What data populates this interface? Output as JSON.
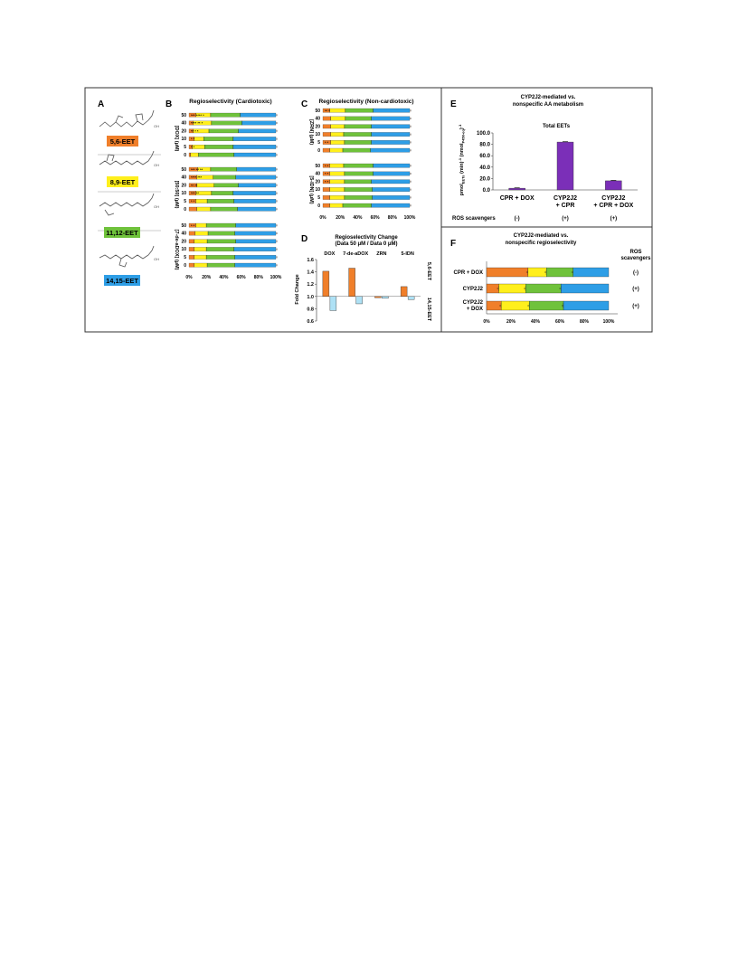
{
  "colors": {
    "eet56": "#f07f2a",
    "eet89": "#ffef1c",
    "eet1112": "#6fc23b",
    "eet1415": "#2e9ee6",
    "purple": "#7b2fb8",
    "neg": "#aee1f5",
    "frame": "#333333"
  },
  "panel_letters": {
    "A": "A",
    "B": "B",
    "C": "C",
    "D": "D",
    "E": "E",
    "F": "F"
  },
  "legend": {
    "items": [
      {
        "label": "5,6-EET",
        "color": "#f07f2a"
      },
      {
        "label": "8,9-EET",
        "color": "#ffef1c"
      },
      {
        "label": "11,12-EET",
        "color": "#6fc23b"
      },
      {
        "label": "14,15-EET",
        "color": "#2e9ee6"
      }
    ]
  },
  "panelB": {
    "title": "Regioselectivity (Cardiotoxic)",
    "x_ticks": [
      "0%",
      "20%",
      "40%",
      "60%",
      "80%",
      "100%"
    ],
    "groups": [
      {
        "label": "[DOX] (μM)",
        "rows": [
          {
            "conc": "50",
            "v": [
              8,
              17,
              34,
              41
            ],
            "stars": "*** **** *"
          },
          {
            "conc": "40",
            "v": [
              5,
              21,
              35,
              39
            ],
            "stars": "**** **  *"
          },
          {
            "conc": "20",
            "v": [
              5,
              18,
              34,
              43
            ],
            "stars": "** *  *"
          },
          {
            "conc": "10",
            "v": [
              6,
              11,
              34,
              49
            ],
            "stars": "* *"
          },
          {
            "conc": "5",
            "v": [
              4,
              14,
              33,
              49
            ],
            "stars": "* *"
          },
          {
            "conc": "0",
            "v": [
              2,
              9,
              41,
              48
            ],
            "stars": ""
          }
        ]
      },
      {
        "label": "[50:50] (μM)",
        "rows": [
          {
            "conc": "50",
            "v": [
              10,
              15,
              30,
              45
            ],
            "stars": "*** **  **"
          },
          {
            "conc": "40",
            "v": [
              9,
              19,
              26,
              46
            ],
            "stars": "**** ***"
          },
          {
            "conc": "20",
            "v": [
              9,
              20,
              28,
              43
            ],
            "stars": "** **"
          },
          {
            "conc": "10",
            "v": [
              8,
              18,
              25,
              49
            ],
            "stars": "*** **"
          },
          {
            "conc": "5",
            "v": [
              8,
              13,
              31,
              48
            ],
            "stars": "* *"
          },
          {
            "conc": "0",
            "v": [
              9,
              16,
              31,
              44
            ],
            "stars": ""
          }
        ]
      },
      {
        "label": "[7-de-aDOX] (μM)",
        "rows": [
          {
            "conc": "50",
            "v": [
              8,
              12,
              34,
              46
            ],
            "stars": "* *"
          },
          {
            "conc": "40",
            "v": [
              7,
              15,
              31,
              47
            ],
            "stars": ""
          },
          {
            "conc": "20",
            "v": [
              6,
              15,
              33,
              46
            ],
            "stars": ""
          },
          {
            "conc": "10",
            "v": [
              6,
              14,
              32,
              48
            ],
            "stars": ""
          },
          {
            "conc": "5",
            "v": [
              6,
              14,
              33,
              47
            ],
            "stars": ""
          },
          {
            "conc": "0",
            "v": [
              6,
              15,
              32,
              47
            ],
            "stars": ""
          }
        ]
      }
    ]
  },
  "panelC": {
    "title": "Regioselectivity (Non-cardiotoxic)",
    "x_ticks": [
      "0%",
      "20%",
      "40%",
      "60%",
      "80%",
      "100%"
    ],
    "groups": [
      {
        "label": "[ZRN] (μM)",
        "rows": [
          {
            "conc": "50",
            "v": [
              8,
              18,
              32,
              42
            ],
            "stars": "** *"
          },
          {
            "conc": "40",
            "v": [
              9,
              17,
              30,
              44
            ],
            "stars": ""
          },
          {
            "conc": "20",
            "v": [
              9,
              16,
              31,
              44
            ],
            "stars": ""
          },
          {
            "conc": "10",
            "v": [
              9,
              15,
              32,
              44
            ],
            "stars": ""
          },
          {
            "conc": "5",
            "v": [
              9,
              16,
              31,
              44
            ],
            "stars": "* *"
          },
          {
            "conc": "0",
            "v": [
              8,
              15,
              32,
              45
            ],
            "stars": ""
          }
        ]
      },
      {
        "label": "[5-IDN] (μM)",
        "rows": [
          {
            "conc": "50",
            "v": [
              8,
              16,
              34,
              42
            ],
            "stars": "* *"
          },
          {
            "conc": "40",
            "v": [
              8,
              17,
              33,
              42
            ],
            "stars": "* *"
          },
          {
            "conc": "20",
            "v": [
              8,
              17,
              31,
              44
            ],
            "stars": "* *"
          },
          {
            "conc": "10",
            "v": [
              8,
              17,
              32,
              43
            ],
            "stars": ""
          },
          {
            "conc": "5",
            "v": [
              8,
              17,
              32,
              43
            ],
            "stars": ""
          },
          {
            "conc": "0",
            "v": [
              8,
              15,
              33,
              44
            ],
            "stars": ""
          }
        ]
      }
    ]
  },
  "chart_data": [
    {
      "type": "bar",
      "panel": "D",
      "title": "Regioselectivity Change",
      "subtitle": "(Data 50 μM / Data 0 μM)",
      "categories": [
        "DOX",
        "7-de-aDOX",
        "ZRN",
        "5-IDN"
      ],
      "series": [
        {
          "name": "5,6-EET",
          "values": [
            1.41,
            1.46,
            0.98,
            1.16
          ]
        },
        {
          "name": "14,15-EET",
          "values": [
            0.77,
            0.88,
            0.97,
            0.95
          ]
        }
      ],
      "ylabel": "Fold Change",
      "ylim": [
        0.6,
        1.6
      ],
      "yticks": [
        "1.6",
        "1.4",
        "1.2",
        "1.0",
        "0.8",
        "0.6"
      ],
      "baseline": 1.0
    },
    {
      "type": "bar",
      "panel": "E",
      "title": "CYP2J2-mediated vs. nonspecific AA metabolism",
      "series_label": "Total EETs",
      "categories": [
        "CPR + DOX",
        "CYP2J2 + CPR",
        "CYP2J2 + CPR + DOX"
      ],
      "values": [
        3,
        84,
        16
      ],
      "ylabel": "pmolEETs (min)-1 (nmolP450-eq)-1",
      "ylim": [
        0,
        100
      ],
      "yticks": [
        "100.0",
        "80.0",
        "60.0",
        "40.0",
        "20.0",
        "0.0"
      ],
      "ros_label": "ROS scavengers",
      "ros_values": [
        "(-)",
        "(+)",
        "(+)"
      ]
    },
    {
      "type": "bar",
      "panel": "F",
      "stacked": true,
      "title": "CYP2J2-mediated vs. nonspecific regioselectivity",
      "categories": [
        "CPR + DOX",
        "CYP2J2",
        "CYP2J2 + DOX"
      ],
      "series": [
        {
          "name": "5,6-EET",
          "values": [
            34,
            10,
            12
          ]
        },
        {
          "name": "8,9-EET",
          "values": [
            15,
            22,
            23
          ]
        },
        {
          "name": "11,12-EET",
          "values": [
            22,
            29,
            28
          ]
        },
        {
          "name": "14,15-EET",
          "values": [
            29,
            39,
            37
          ]
        }
      ],
      "ros_header": "ROS scavengers",
      "ros_values": [
        "(-)",
        "(+)",
        "(+)"
      ],
      "x_ticks": [
        "0%",
        "20%",
        "40%",
        "60%",
        "80%",
        "100%"
      ]
    }
  ]
}
